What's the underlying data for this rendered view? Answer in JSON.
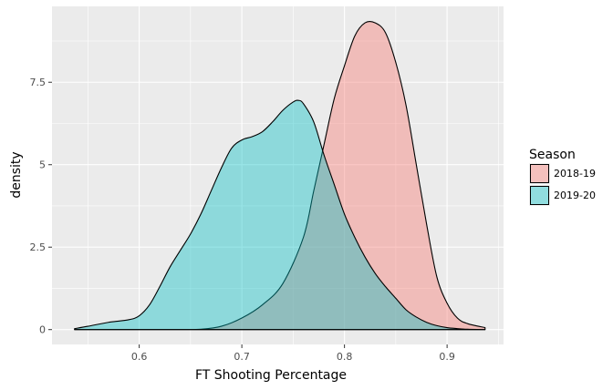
{
  "chart_data": {
    "type": "area",
    "title": "",
    "xlabel": "FT Shooting Percentage",
    "ylabel": "density",
    "xlim": [
      0.515,
      0.955
    ],
    "ylim": [
      -0.45,
      9.8
    ],
    "x_ticks": [
      0.6,
      0.7,
      0.8,
      0.9
    ],
    "x_tick_labels": [
      "0.6",
      "0.7",
      "0.8",
      "0.9"
    ],
    "y_ticks": [
      0,
      2.5,
      5,
      7.5
    ],
    "y_tick_labels": [
      "0",
      "2.5",
      "5",
      "7.5"
    ],
    "grid": true,
    "legend": {
      "title": "Season",
      "placement": "right"
    },
    "series": [
      {
        "name": "2018-19",
        "color": "#F8766D",
        "x": [
          0.537,
          0.6,
          0.64,
          0.66,
          0.68,
          0.7,
          0.72,
          0.74,
          0.76,
          0.77,
          0.78,
          0.79,
          0.8,
          0.81,
          0.82,
          0.83,
          0.84,
          0.85,
          0.86,
          0.87,
          0.88,
          0.89,
          0.9,
          0.91,
          0.92,
          0.937
        ],
        "y": [
          0,
          0,
          0,
          0.01,
          0.1,
          0.35,
          0.75,
          1.4,
          2.8,
          4.2,
          5.6,
          7.0,
          8.0,
          8.9,
          9.3,
          9.3,
          9.0,
          8.1,
          6.8,
          5.0,
          3.2,
          1.6,
          0.8,
          0.35,
          0.18,
          0.06
        ]
      },
      {
        "name": "2019-20",
        "color": "#00BFC4",
        "x": [
          0.537,
          0.55,
          0.57,
          0.59,
          0.6,
          0.61,
          0.62,
          0.63,
          0.64,
          0.65,
          0.66,
          0.67,
          0.68,
          0.69,
          0.7,
          0.71,
          0.72,
          0.73,
          0.74,
          0.75,
          0.755,
          0.76,
          0.77,
          0.78,
          0.79,
          0.8,
          0.81,
          0.82,
          0.83,
          0.84,
          0.85,
          0.86,
          0.87,
          0.88,
          0.89,
          0.9,
          0.91,
          0.92,
          0.937
        ],
        "y": [
          0.03,
          0.1,
          0.22,
          0.3,
          0.42,
          0.75,
          1.3,
          1.9,
          2.4,
          2.9,
          3.5,
          4.2,
          4.9,
          5.5,
          5.75,
          5.85,
          6.0,
          6.3,
          6.65,
          6.9,
          6.95,
          6.85,
          6.3,
          5.3,
          4.4,
          3.5,
          2.8,
          2.2,
          1.7,
          1.3,
          0.95,
          0.6,
          0.38,
          0.22,
          0.12,
          0.06,
          0.03,
          0.01,
          0
        ]
      }
    ]
  }
}
